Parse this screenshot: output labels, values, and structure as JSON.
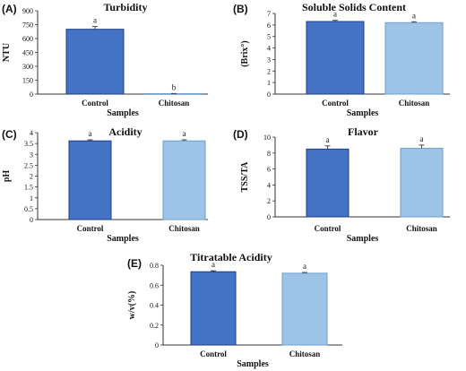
{
  "colors": {
    "control": "#4472C4",
    "control_edge": "#1F3F84",
    "chitosan": "#9DC3E6",
    "chitosan_edge": "#6F9FCC"
  },
  "chart_data": [
    {
      "type": "bar",
      "panel": "(A)",
      "title": "Turbidity",
      "xlabel": "Samples",
      "ylabel": "NTU",
      "categories": [
        "Control",
        "Chitosan"
      ],
      "values": [
        700,
        5
      ],
      "errors": [
        30,
        2
      ],
      "letters": [
        "a",
        "b"
      ],
      "ylim": [
        0,
        900
      ],
      "yticks": [
        "0",
        "150",
        "300",
        "450",
        "600",
        "750",
        "900"
      ]
    },
    {
      "type": "bar",
      "panel": "(B)",
      "title": "Soluble Solids Content",
      "xlabel": "Samples",
      "ylabel": "(Brix°)",
      "categories": [
        "Control",
        "Chitosan"
      ],
      "values": [
        6.3,
        6.2
      ],
      "errors": [
        0.1,
        0.08
      ],
      "letters": [
        "a",
        "a"
      ],
      "ylim": [
        0,
        7
      ],
      "yticks": [
        "0",
        "1",
        "2",
        "3",
        "4",
        "5",
        "6",
        "7"
      ]
    },
    {
      "type": "bar",
      "panel": "(C)",
      "title": "Acidity",
      "xlabel": "Samples",
      "ylabel": "pH",
      "categories": [
        "Control",
        "Chitosan"
      ],
      "values": [
        3.62,
        3.62
      ],
      "errors": [
        0.05,
        0.05
      ],
      "letters": [
        "a",
        "a"
      ],
      "ylim": [
        0,
        4
      ],
      "yticks": [
        "0",
        "0.5",
        "1",
        "1.5",
        "2",
        "2.5",
        "3",
        "3.5",
        "4"
      ]
    },
    {
      "type": "bar",
      "panel": "(D)",
      "title": "Flavor",
      "xlabel": "Samples",
      "ylabel": "TSS/TA",
      "categories": [
        "Control",
        "Chitosan"
      ],
      "values": [
        8.5,
        8.6
      ],
      "errors": [
        0.4,
        0.4
      ],
      "letters": [
        "a",
        "a"
      ],
      "ylim": [
        0,
        10
      ],
      "yticks": [
        "0",
        "2",
        "4",
        "6",
        "8",
        "10"
      ]
    },
    {
      "type": "bar",
      "panel": "(E)",
      "title": "Titratable Acidity",
      "xlabel": "Samples",
      "ylabel": "w/v(%)",
      "categories": [
        "Control",
        "Chitosan"
      ],
      "values": [
        0.735,
        0.72
      ],
      "errors": [
        0.01,
        0.008
      ],
      "letters": [
        "a",
        "a"
      ],
      "ylim": [
        0,
        0.8
      ],
      "yticks": [
        "0",
        "0.2",
        "0.4",
        "0.6",
        "0.8"
      ]
    }
  ]
}
